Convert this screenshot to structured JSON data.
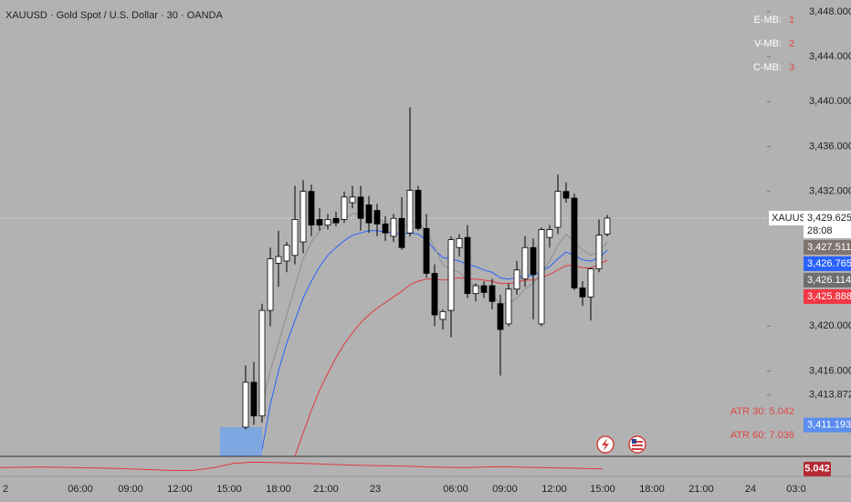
{
  "chart_data": {
    "type": "candlestick",
    "title": "XAUUSD · Gold Spot / U.S. Dollar · 30 · OANDA",
    "ylim": [
      3408.4,
      3449.05
    ],
    "yticks": [
      {
        "value": 3448,
        "label": "3,448.000"
      },
      {
        "value": 3444,
        "label": "3,444.000"
      },
      {
        "value": 3440,
        "label": "3,440.000"
      },
      {
        "value": 3436,
        "label": "3,436.000"
      },
      {
        "value": 3432,
        "label": "3,432.000"
      },
      {
        "value": 3420,
        "label": "3,420.000"
      },
      {
        "value": 3416,
        "label": "3,416.000"
      },
      {
        "value": 3413.872,
        "label": "3,413.872"
      }
    ],
    "x_labels": [
      "2",
      "06:00",
      "09:00",
      "12:00",
      "15:00",
      "18:00",
      "21:00",
      "23",
      "06:00",
      "09:00",
      "12:00",
      "15:00",
      "18:00",
      "21:00",
      "24",
      "03:0"
    ],
    "ohlc": [
      [
        3411.0,
        3416.5,
        3410.8,
        3415.0
      ],
      [
        3415.0,
        3416.8,
        3411.2,
        3412.0
      ],
      [
        3412.0,
        3422.0,
        3411.4,
        3421.4
      ],
      [
        3421.4,
        3427.0,
        3420.0,
        3426.0
      ],
      [
        3425.6,
        3428.5,
        3423.5,
        3426.2
      ],
      [
        3425.8,
        3427.5,
        3424.8,
        3427.2
      ],
      [
        3426.3,
        3432.5,
        3425.5,
        3429.5
      ],
      [
        3427.5,
        3433.0,
        3426.5,
        3432.0
      ],
      [
        3432.0,
        3432.6,
        3428.0,
        3429.0
      ],
      [
        3429.5,
        3430.5,
        3428.5,
        3429.0
      ],
      [
        3429.0,
        3430.0,
        3428.6,
        3429.5
      ],
      [
        3429.6,
        3430.2,
        3428.9,
        3429.2
      ],
      [
        3429.5,
        3432.0,
        3429.2,
        3431.5
      ],
      [
        3431.0,
        3432.5,
        3430.5,
        3431.5
      ],
      [
        3431.5,
        3432.5,
        3428.5,
        3429.6
      ],
      [
        3430.8,
        3431.6,
        3428.3,
        3429.2
      ],
      [
        3430.3,
        3430.9,
        3428.0,
        3429.1
      ],
      [
        3429.1,
        3429.8,
        3427.6,
        3428.3
      ],
      [
        3428.0,
        3430.0,
        3427.5,
        3429.6
      ],
      [
        3429.6,
        3431.5,
        3426.8,
        3427.0
      ],
      [
        3428.3,
        3439.5,
        3428.0,
        3432.1
      ],
      [
        3432.1,
        3432.5,
        3428.5,
        3428.7
      ],
      [
        3428.7,
        3430.0,
        3424.3,
        3424.7
      ],
      [
        3424.7,
        3425.5,
        3420.0,
        3421.0
      ],
      [
        3420.6,
        3421.5,
        3419.7,
        3421.3
      ],
      [
        3421.4,
        3428.0,
        3419.0,
        3427.7
      ],
      [
        3427.0,
        3428.2,
        3426.2,
        3427.8
      ],
      [
        3427.9,
        3429.0,
        3422.5,
        3422.9
      ],
      [
        3422.9,
        3423.8,
        3422.2,
        3423.6
      ],
      [
        3423.6,
        3424.0,
        3422.5,
        3423.0
      ],
      [
        3423.6,
        3424.2,
        3421.5,
        3422.2
      ],
      [
        3422.0,
        3422.8,
        3415.6,
        3419.7
      ],
      [
        3420.2,
        3423.8,
        3420.0,
        3423.3
      ],
      [
        3423.3,
        3425.8,
        3422.8,
        3425.0
      ],
      [
        3424.2,
        3428.0,
        3423.5,
        3427.0
      ],
      [
        3427.0,
        3427.8,
        3420.6,
        3424.6
      ],
      [
        3420.2,
        3428.8,
        3420.0,
        3428.6
      ],
      [
        3427.9,
        3429.0,
        3427.0,
        3428.6
      ],
      [
        3428.8,
        3433.5,
        3428.2,
        3432.0
      ],
      [
        3432.0,
        3432.8,
        3431.0,
        3431.4
      ],
      [
        3431.4,
        3431.8,
        3423.2,
        3423.4
      ],
      [
        3423.4,
        3424.0,
        3421.8,
        3422.6
      ],
      [
        3422.6,
        3425.2,
        3420.5,
        3425.1
      ],
      [
        3425.1,
        3429.5,
        3424.8,
        3428.1
      ],
      [
        3428.2,
        3429.9,
        3428.0,
        3429.625
      ]
    ],
    "indicators": [
      {
        "color": "#2962ff",
        "values": [
          null,
          null,
          3409.0,
          3413.0,
          3416.0,
          3418.5,
          3420.5,
          3422.5,
          3424.0,
          3425.3,
          3426.3,
          3427.0,
          3427.6,
          3428.1,
          3428.3,
          3428.5,
          3428.5,
          3428.4,
          3428.3,
          3428.2,
          3428.3,
          3428.2,
          3427.7,
          3426.8,
          3426.1,
          3426.0,
          3425.8,
          3425.5,
          3425.3,
          3425.0,
          3424.8,
          3424.3,
          3424.2,
          3424.3,
          3424.5,
          3424.5,
          3424.9,
          3425.3,
          3426.0,
          3426.6,
          3426.3,
          3425.9,
          3425.8,
          3426.1,
          3426.765
        ]
      },
      {
        "color": "#e03a3e",
        "values": [
          null,
          null,
          null,
          null,
          null,
          null,
          3408.4,
          3410.5,
          3412.5,
          3414.3,
          3415.8,
          3417.2,
          3418.4,
          3419.4,
          3420.3,
          3421.0,
          3421.6,
          3422.1,
          3422.6,
          3423.1,
          3423.7,
          3424.0,
          3424.2,
          3424.2,
          3424.1,
          3424.2,
          3424.3,
          3424.2,
          3424.2,
          3424.1,
          3424.0,
          3423.8,
          3423.8,
          3423.9,
          3424.1,
          3424.1,
          3424.3,
          3424.6,
          3425.0,
          3425.4,
          3425.4,
          3425.2,
          3425.2,
          3425.5,
          3425.888
        ]
      },
      {
        "color": "#8d8d8d",
        "values": [
          null,
          null,
          3413,
          3416,
          3418.5,
          3421,
          3423.5,
          3426,
          3427.5,
          3428.5,
          3429,
          3429.3,
          3429.6,
          3430,
          3430,
          3429.8,
          3429.6,
          3429.2,
          3429,
          3428.8,
          3429.2,
          3429.3,
          3428.5,
          3427,
          3425.5,
          3425,
          3424.8,
          3424,
          3423.6,
          3423.2,
          3422.8,
          3422,
          3422,
          3422.5,
          3423.3,
          3423.8,
          3424.8,
          3425.8,
          3427.2,
          3428.2,
          3427.5,
          3426.8,
          3426.3,
          3426.6,
          3427.511
        ]
      }
    ],
    "symbol": "XAUUSD",
    "countdown": "28:08",
    "price_labels": [
      {
        "value": 3429.625,
        "label": "3,429.625",
        "color": "#ffffff"
      },
      {
        "value": 3427.511,
        "label": "3,427.511",
        "color": "#7f7470"
      },
      {
        "value": 3426.765,
        "label": "3,426.765",
        "color": "#2962ff"
      },
      {
        "value": 3426.114,
        "label": "3,426.114",
        "color": "#6e6e6e"
      },
      {
        "value": 3425.888,
        "label": "3,425.888",
        "color": "#f23645"
      },
      {
        "value": 3411.193,
        "label": "3,411.193",
        "color": "#5b8def"
      }
    ],
    "legend": [
      {
        "label": "E-MB:",
        "value": "1"
      },
      {
        "label": "V-MB:",
        "value": "2"
      },
      {
        "label": "C-MB:",
        "value": "3"
      }
    ],
    "atr_texts": [
      "ATR 30: 5.042",
      "ATR 60: 7.036"
    ],
    "atr": {
      "ylim": [
        3,
        8
      ],
      "color": "#e03a3e",
      "value_label": "5.042",
      "last": 5.042,
      "values": [
        5.4,
        5.5,
        5.6,
        5.5,
        5.4,
        5.3,
        5.2,
        5.0,
        4.8,
        4.6,
        4.7,
        5.4,
        6.6,
        6.9,
        6.8,
        6.7,
        6.5,
        6.3,
        6.1,
        6.0,
        5.9,
        5.8,
        5.6,
        5.5,
        5.4,
        5.6,
        5.7,
        5.5,
        5.4,
        5.3,
        5.2,
        5.042
      ]
    }
  }
}
